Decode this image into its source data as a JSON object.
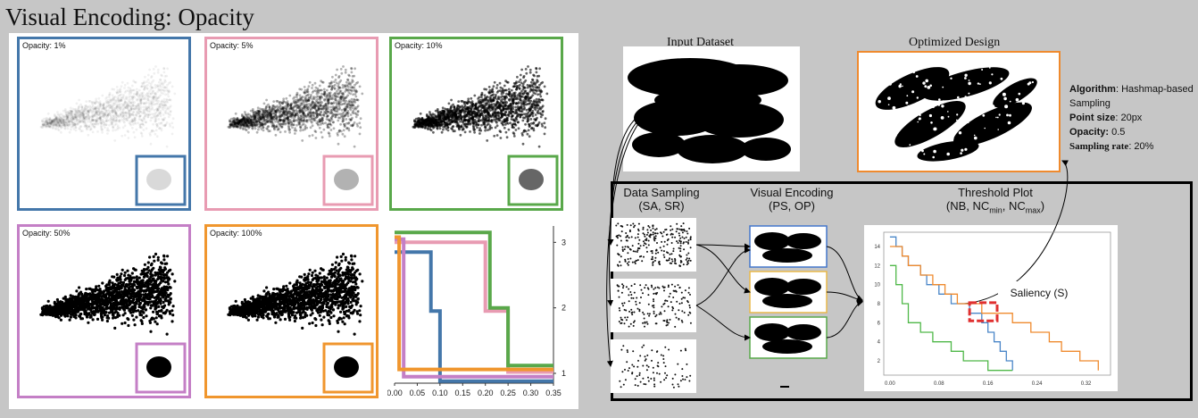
{
  "title": "Visual Encoding: Opacity",
  "opacity_panels": [
    {
      "label": "Opacity: 1%",
      "color": "#4477aa",
      "opacity": 0.01
    },
    {
      "label": "Opacity: 5%",
      "color": "#e89bb2",
      "opacity": 0.05
    },
    {
      "label": "Opacity: 10%",
      "color": "#59a84a",
      "opacity": 0.1
    },
    {
      "label": "Opacity: 50%",
      "color": "#c47fc6",
      "opacity": 0.5
    },
    {
      "label": "Opacity: 100%",
      "color": "#f0962e",
      "opacity": 1.0
    }
  ],
  "step_chart": {
    "x_ticks": [
      "0.00",
      "0.05",
      "0.10",
      "0.15",
      "0.20",
      "0.25",
      "0.30",
      "0.35"
    ],
    "y_ticks": [
      "1",
      "2",
      "3"
    ],
    "xlim": [
      0,
      0.35
    ],
    "ylim": [
      0.85,
      3.25
    ],
    "series": [
      {
        "color": "#4477aa",
        "points": [
          [
            0,
            2.85
          ],
          [
            0.08,
            2.85
          ],
          [
            0.08,
            1.95
          ],
          [
            0.1,
            1.95
          ],
          [
            0.1,
            0.88
          ],
          [
            0.35,
            0.88
          ]
        ]
      },
      {
        "color": "#e89bb2",
        "points": [
          [
            0,
            3.0
          ],
          [
            0.2,
            3.0
          ],
          [
            0.2,
            1.95
          ],
          [
            0.25,
            1.95
          ],
          [
            0.25,
            1.02
          ],
          [
            0.35,
            1.02
          ]
        ]
      },
      {
        "color": "#59a84a",
        "points": [
          [
            0,
            3.15
          ],
          [
            0.21,
            3.15
          ],
          [
            0.21,
            2.0
          ],
          [
            0.25,
            2.0
          ],
          [
            0.25,
            1.12
          ],
          [
            0.35,
            1.12
          ]
        ]
      },
      {
        "color": "#c47fc6",
        "points": [
          [
            0,
            3.05
          ],
          [
            0.02,
            3.05
          ],
          [
            0.02,
            0.95
          ],
          [
            0.35,
            0.95
          ]
        ]
      },
      {
        "color": "#f0962e",
        "points": [
          [
            0,
            3.08
          ],
          [
            0.01,
            3.08
          ],
          [
            0.01,
            1.06
          ],
          [
            0.35,
            1.06
          ]
        ]
      }
    ]
  },
  "workflow": {
    "input_dataset": "Input Dataset",
    "optimized_design": "Optimized Design",
    "algo": {
      "algorithm_label": "Algorithm",
      "algorithm_value": ": Hashmap-based Sampling",
      "point_size_label": "Point size",
      "point_size_value": ": 20px",
      "opacity_label": "Opacity:",
      "opacity_value": " 0.5",
      "sampling_label": "Sampling rate",
      "sampling_value": ": 20%"
    },
    "data_sampling_title": "Data Sampling",
    "data_sampling_params": "(SA, SR)",
    "visual_encoding_title": "Visual Encoding",
    "visual_encoding_params": "(PS, OP)",
    "threshold_title": "Threshold Plot",
    "threshold_params_open": "(NB, NC",
    "threshold_params_min": "min",
    "threshold_params_sep": ", NC",
    "threshold_params_max": "max",
    "threshold_params_close": ")",
    "saliency": "Saliency (S)",
    "encoding_colors": [
      "#4477cc",
      "#e8b84a",
      "#59a84a"
    ]
  },
  "threshold_chart": {
    "x_ticks": [
      "0.00",
      "0.08",
      "0.16",
      "0.24",
      "0.32"
    ],
    "y_ticks": [
      "2",
      "4",
      "6",
      "8",
      "10",
      "12",
      "14"
    ],
    "xlim": [
      -0.01,
      0.36
    ],
    "ylim": [
      0.5,
      15.5
    ],
    "series": [
      {
        "color": "#4a86c8",
        "points": [
          [
            0,
            15
          ],
          [
            0.01,
            15
          ],
          [
            0.01,
            14
          ],
          [
            0.02,
            14
          ],
          [
            0.02,
            13
          ],
          [
            0.03,
            13
          ],
          [
            0.03,
            12
          ],
          [
            0.05,
            12
          ],
          [
            0.05,
            11
          ],
          [
            0.06,
            11
          ],
          [
            0.06,
            10
          ],
          [
            0.08,
            10
          ],
          [
            0.08,
            9
          ],
          [
            0.1,
            9
          ],
          [
            0.1,
            8
          ],
          [
            0.13,
            8
          ],
          [
            0.13,
            7
          ],
          [
            0.15,
            7
          ],
          [
            0.15,
            6
          ],
          [
            0.16,
            6
          ],
          [
            0.16,
            5
          ],
          [
            0.17,
            5
          ],
          [
            0.17,
            4
          ],
          [
            0.18,
            4
          ],
          [
            0.18,
            3
          ],
          [
            0.19,
            3
          ],
          [
            0.19,
            2
          ],
          [
            0.2,
            2
          ],
          [
            0.2,
            1
          ]
        ]
      },
      {
        "color": "#ef8a2e",
        "points": [
          [
            0,
            14
          ],
          [
            0.02,
            14
          ],
          [
            0.02,
            13
          ],
          [
            0.03,
            13
          ],
          [
            0.03,
            12
          ],
          [
            0.05,
            12
          ],
          [
            0.05,
            11
          ],
          [
            0.07,
            11
          ],
          [
            0.07,
            10
          ],
          [
            0.09,
            10
          ],
          [
            0.09,
            9
          ],
          [
            0.11,
            9
          ],
          [
            0.11,
            8
          ],
          [
            0.15,
            8
          ],
          [
            0.15,
            7
          ],
          [
            0.2,
            7
          ],
          [
            0.2,
            6
          ],
          [
            0.23,
            6
          ],
          [
            0.23,
            5
          ],
          [
            0.26,
            5
          ],
          [
            0.26,
            4
          ],
          [
            0.28,
            4
          ],
          [
            0.28,
            3
          ],
          [
            0.31,
            3
          ],
          [
            0.31,
            2
          ],
          [
            0.34,
            2
          ],
          [
            0.34,
            1
          ]
        ]
      },
      {
        "color": "#4fb848",
        "points": [
          [
            0,
            12
          ],
          [
            0.01,
            12
          ],
          [
            0.01,
            10
          ],
          [
            0.02,
            10
          ],
          [
            0.02,
            8
          ],
          [
            0.03,
            8
          ],
          [
            0.03,
            6
          ],
          [
            0.05,
            6
          ],
          [
            0.05,
            5
          ],
          [
            0.07,
            5
          ],
          [
            0.07,
            4
          ],
          [
            0.1,
            4
          ],
          [
            0.1,
            3
          ],
          [
            0.12,
            3
          ],
          [
            0.12,
            2
          ],
          [
            0.16,
            2
          ],
          [
            0.16,
            1
          ],
          [
            0.2,
            1
          ]
        ]
      }
    ]
  }
}
